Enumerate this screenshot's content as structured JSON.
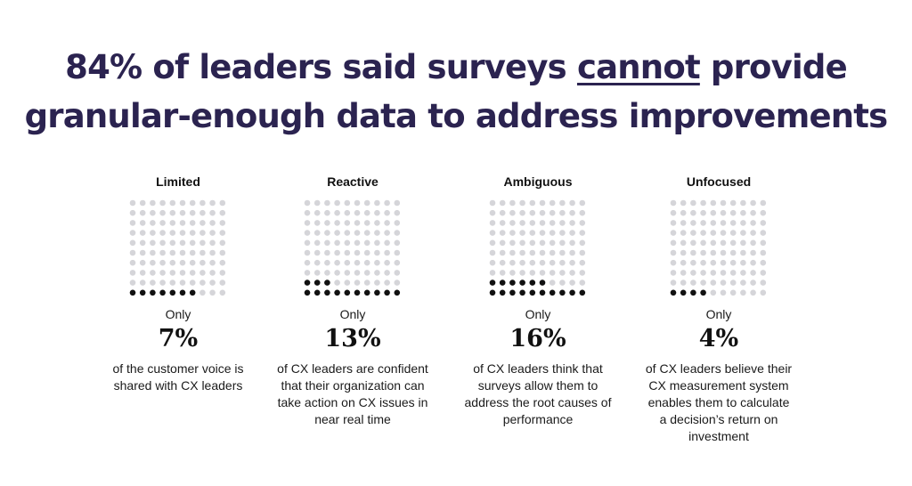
{
  "headline": {
    "line1_before": "84% of leaders said surveys ",
    "line1_emphasis": "cannot",
    "line1_after": " provide",
    "line2": "granular-enough data to address improvements"
  },
  "colors": {
    "headline": "#2b2350",
    "dot_filled": "#111111",
    "dot_empty": "#d5d5d9"
  },
  "chart_data": {
    "type": "waffle",
    "grid": {
      "columns": 10,
      "rows": 10,
      "total_cells": 100
    },
    "panels": [
      {
        "title": "Limited",
        "prefix": "Only",
        "value": 7,
        "value_label": "7%",
        "description": "of the customer voice is shared with CX leaders"
      },
      {
        "title": "Reactive",
        "prefix": "Only",
        "value": 13,
        "value_label": "13%",
        "description": "of CX leaders are confident that their organization can take action on CX issues in near real time"
      },
      {
        "title": "Ambiguous",
        "prefix": "Only",
        "value": 16,
        "value_label": "16%",
        "description": "of CX leaders think that surveys allow them to address the root causes of performance"
      },
      {
        "title": "Unfocused",
        "prefix": "Only",
        "value": 4,
        "value_label": "4%",
        "description": "of CX leaders believe their CX measurement system enables them to calculate a decision’s return on investment"
      }
    ]
  }
}
